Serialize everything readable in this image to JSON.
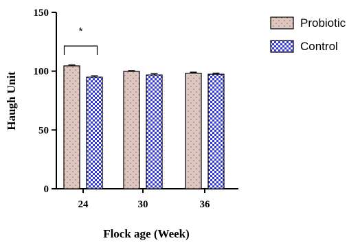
{
  "chart_data": {
    "type": "bar",
    "categories": [
      "24",
      "30",
      "36"
    ],
    "series": [
      {
        "name": "Probiotic",
        "values": [
          104.5,
          99.8,
          98.3
        ],
        "errors": [
          0.8,
          0.6,
          0.8
        ],
        "color": "#d9c9c3",
        "dot_color": "#e8545f"
      },
      {
        "name": "Control",
        "values": [
          95.0,
          96.8,
          97.4
        ],
        "errors": [
          1.0,
          1.0,
          0.9
        ],
        "color": "#2f34e6",
        "check_color": "#ffffff"
      }
    ],
    "xlabel": "Flock age (Week)",
    "ylabel": "Haugh Unit",
    "ylim": [
      0,
      150
    ],
    "yticks": [
      0,
      50,
      100,
      150
    ],
    "grid": false,
    "legend_position": "top-right",
    "annotations": [
      {
        "text": "*",
        "category": "24",
        "bracket": [
          "Probiotic",
          "Control"
        ]
      }
    ]
  }
}
